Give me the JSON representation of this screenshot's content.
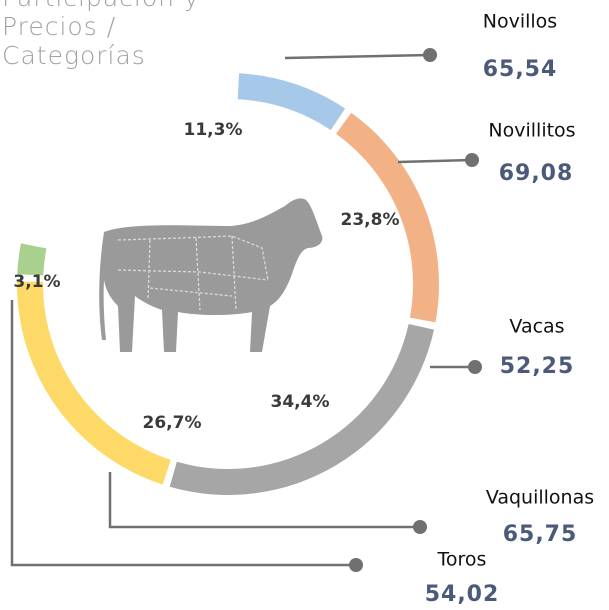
{
  "chart_data": {
    "type": "donut",
    "title_lines": [
      "Participación y",
      "Precios /",
      "Categorías"
    ],
    "categories": [
      "Novillos",
      "Novillitos",
      "Vacas",
      "Vaquillonas",
      "Toros"
    ],
    "values": [
      11.3,
      23.8,
      34.4,
      26.7,
      3.1
    ],
    "value_labels": [
      "11,3%",
      "23,8%",
      "34,4%",
      "26,7%",
      "3,1%"
    ],
    "prices": [
      {
        "value": 65.54,
        "label": "65,54"
      },
      {
        "value": 69.08,
        "label": "69,08"
      },
      {
        "value": 52.25,
        "label": "52,25"
      },
      {
        "value": 65.75,
        "label": "65,75"
      },
      {
        "value": 54.02,
        "label": "54,02"
      }
    ],
    "colors": [
      "#a7c9e9",
      "#f3b286",
      "#a6a6a6",
      "#fdd967",
      "#a9d08e"
    ]
  }
}
